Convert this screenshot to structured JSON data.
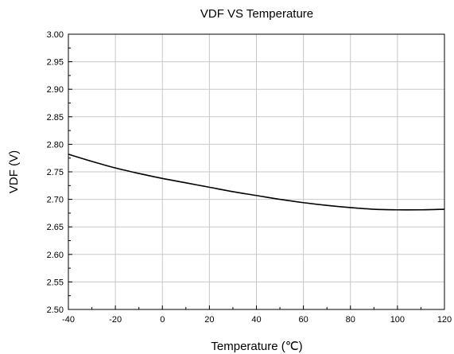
{
  "chart_data": {
    "type": "line",
    "title": "VDF VS Temperature",
    "xlabel": "Temperature (℃)",
    "ylabel": "VDF (V)",
    "xlim": [
      -40,
      120
    ],
    "ylim": [
      2.5,
      3.0
    ],
    "x_ticks": [
      "-40",
      "-20",
      "0",
      "20",
      "40",
      "60",
      "80",
      "100",
      "120"
    ],
    "y_ticks": [
      "2.50",
      "2.55",
      "2.60",
      "2.65",
      "2.70",
      "2.75",
      "2.80",
      "2.85",
      "2.90",
      "2.95",
      "3.00"
    ],
    "grid": true,
    "series": [
      {
        "x": [
          -40,
          -30,
          -20,
          -10,
          0,
          10,
          20,
          30,
          40,
          50,
          60,
          70,
          80,
          90,
          100,
          110,
          120
        ],
        "y": [
          2.782,
          2.769,
          2.757,
          2.747,
          2.738,
          2.73,
          2.722,
          2.714,
          2.707,
          2.7,
          2.694,
          2.689,
          2.685,
          2.682,
          2.681,
          2.681,
          2.682
        ],
        "color": "#000000"
      }
    ]
  }
}
